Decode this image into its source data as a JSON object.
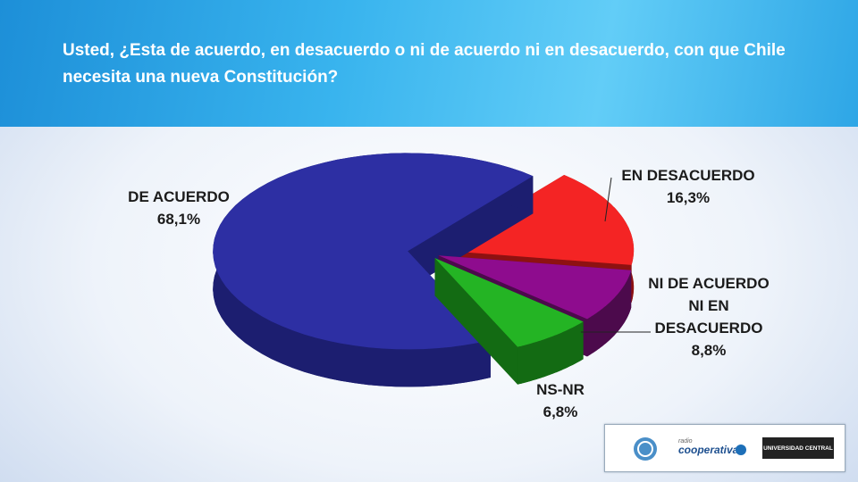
{
  "chart_data": {
    "type": "pie",
    "title": "Usted, ¿Esta de acuerdo, en desacuerdo o ni de acuerdo ni en desacuerdo, con que Chile necesita una nueva Constitución?",
    "categories": [
      "EN DESACUERDO",
      "NI DE ACUERDO NI EN DESACUERDO",
      "NS-NR",
      "DE ACUERDO"
    ],
    "values": [
      16.3,
      8.8,
      6.8,
      68.1
    ],
    "value_labels": [
      "16,3%",
      "8,8%",
      "6,8%",
      "68,1%"
    ],
    "colors": [
      "#f42424",
      "#8e0c8e",
      "#24b424",
      "#2d2fa3"
    ],
    "side_colors": [
      "#8e1111",
      "#4c0a4c",
      "#136b13",
      "#1c1e70"
    ]
  },
  "logos": [
    "radio",
    "cooperativa",
    "UNIVERSIDAD CENTRAL"
  ]
}
